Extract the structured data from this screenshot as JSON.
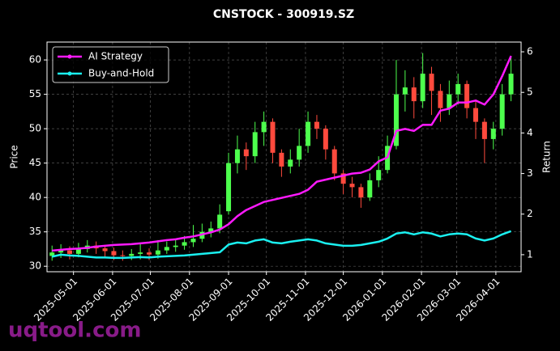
{
  "chart_data": {
    "type": "candlestick",
    "title": "CNSTOCK - 300919.SZ",
    "ylabel": "Price",
    "y2label": "Return",
    "watermark": "uqtool.com",
    "grid": true,
    "legend": "upper left",
    "up_color": "#4dff4d",
    "down_color": "#ff4a3d",
    "x": [
      "2025-04-14",
      "2025-04-21",
      "2025-04-28",
      "2025-05-05",
      "2025-05-12",
      "2025-05-19",
      "2025-05-26",
      "2025-06-02",
      "2025-06-09",
      "2025-06-16",
      "2025-06-23",
      "2025-06-30",
      "2025-07-07",
      "2025-07-14",
      "2025-07-21",
      "2025-07-28",
      "2025-08-04",
      "2025-08-11",
      "2025-08-18",
      "2025-08-25",
      "2025-09-01",
      "2025-09-08",
      "2025-09-15",
      "2025-09-22",
      "2025-09-29",
      "2025-10-06",
      "2025-10-13",
      "2025-10-20",
      "2025-10-27",
      "2025-11-03",
      "2025-11-10",
      "2025-11-17",
      "2025-11-24",
      "2025-12-01",
      "2025-12-08",
      "2025-12-15",
      "2025-12-22",
      "2025-12-29",
      "2026-01-05",
      "2026-01-12",
      "2026-01-19",
      "2026-01-26",
      "2026-02-02",
      "2026-02-09",
      "2026-02-16",
      "2026-02-23",
      "2026-03-02",
      "2026-03-09",
      "2026-03-16",
      "2026-03-23",
      "2026-03-30",
      "2026-04-06",
      "2026-04-13"
    ],
    "open": [
      31.5,
      32.0,
      32.3,
      31.8,
      32.5,
      33.0,
      32.6,
      32.2,
      31.6,
      31.5,
      31.8,
      32.0,
      31.7,
      32.3,
      32.8,
      33.0,
      33.5,
      34.0,
      35.0,
      35.5,
      38.0,
      45.0,
      47.0,
      46.0,
      49.5,
      51.0,
      46.5,
      44.5,
      45.5,
      47.5,
      51.0,
      50.0,
      47.0,
      43.5,
      42.0,
      41.5,
      40.0,
      42.5,
      44.0,
      47.5,
      55.0,
      56.0,
      54.0,
      58.0,
      55.5,
      53.0,
      55.0,
      56.5,
      53.0,
      51.0,
      48.5,
      50.0,
      55.0
    ],
    "high": [
      33.0,
      33.2,
      32.9,
      33.4,
      33.8,
      33.6,
      33.1,
      32.7,
      32.3,
      32.5,
      33.4,
      32.6,
      33.8,
      33.6,
      34.0,
      34.4,
      36.0,
      36.2,
      36.5,
      39.0,
      46.5,
      49.0,
      48.0,
      51.0,
      52.5,
      51.5,
      47.0,
      47.0,
      50.0,
      52.5,
      52.0,
      50.5,
      47.5,
      44.0,
      43.0,
      42.0,
      43.5,
      46.0,
      49.0,
      60.0,
      58.5,
      57.5,
      61.0,
      59.0,
      56.5,
      57.0,
      58.0,
      57.0,
      54.0,
      51.5,
      51.0,
      56.5,
      60.5
    ],
    "low": [
      30.8,
      31.2,
      31.0,
      31.3,
      32.0,
      31.8,
      31.4,
      30.9,
      30.8,
      30.9,
      31.0,
      30.9,
      31.1,
      31.8,
      32.1,
      32.4,
      32.8,
      33.5,
      34.2,
      34.8,
      37.5,
      43.5,
      44.0,
      45.0,
      47.5,
      45.0,
      43.0,
      43.5,
      44.5,
      46.5,
      48.5,
      45.5,
      42.5,
      40.5,
      40.0,
      38.5,
      39.5,
      41.5,
      43.5,
      47.0,
      52.5,
      51.5,
      53.0,
      52.0,
      51.0,
      52.0,
      53.5,
      51.5,
      48.5,
      45.0,
      47.0,
      49.0,
      54.0
    ],
    "close": [
      32.0,
      32.3,
      31.8,
      32.5,
      33.0,
      32.6,
      32.2,
      31.6,
      31.5,
      31.8,
      32.0,
      31.7,
      32.3,
      32.8,
      33.0,
      33.5,
      34.0,
      35.0,
      35.5,
      37.5,
      45.0,
      47.0,
      46.0,
      49.5,
      51.0,
      46.5,
      44.5,
      45.5,
      47.5,
      51.0,
      50.0,
      47.0,
      43.5,
      42.0,
      41.5,
      40.0,
      42.5,
      44.0,
      47.5,
      55.0,
      56.0,
      54.0,
      58.0,
      55.5,
      53.0,
      55.0,
      56.5,
      53.0,
      51.0,
      48.5,
      50.0,
      55.0,
      58.0
    ],
    "series": [
      {
        "name": "AI Strategy",
        "color": "#ff1aff",
        "axis": "y2",
        "values": [
          1.1,
          1.12,
          1.14,
          1.15,
          1.17,
          1.2,
          1.22,
          1.24,
          1.25,
          1.26,
          1.28,
          1.3,
          1.33,
          1.36,
          1.38,
          1.42,
          1.45,
          1.5,
          1.55,
          1.62,
          1.75,
          1.95,
          2.1,
          2.2,
          2.3,
          2.35,
          2.4,
          2.45,
          2.5,
          2.6,
          2.8,
          2.85,
          2.9,
          2.95,
          3.0,
          3.02,
          3.1,
          3.3,
          3.4,
          4.05,
          4.1,
          4.05,
          4.2,
          4.2,
          4.55,
          4.6,
          4.75,
          4.75,
          4.8,
          4.7,
          4.95,
          5.4,
          5.9
        ]
      },
      {
        "name": "Buy-and-Hold",
        "color": "#1af0f0",
        "axis": "y2",
        "values": [
          0.95,
          1.0,
          0.98,
          0.97,
          0.95,
          0.93,
          0.93,
          0.92,
          0.92,
          0.93,
          0.94,
          0.93,
          0.95,
          0.96,
          0.97,
          0.98,
          1.0,
          1.02,
          1.04,
          1.06,
          1.25,
          1.3,
          1.28,
          1.35,
          1.38,
          1.3,
          1.28,
          1.32,
          1.35,
          1.38,
          1.35,
          1.28,
          1.25,
          1.22,
          1.22,
          1.24,
          1.28,
          1.32,
          1.4,
          1.52,
          1.55,
          1.5,
          1.55,
          1.52,
          1.45,
          1.5,
          1.52,
          1.5,
          1.4,
          1.35,
          1.4,
          1.5,
          1.58
        ]
      }
    ],
    "xlim": [
      "2025-04-10",
      "2026-04-21"
    ],
    "xticks": [
      "2025-05-01",
      "2025-06-01",
      "2025-07-01",
      "2025-08-01",
      "2025-09-01",
      "2025-10-01",
      "2025-11-01",
      "2025-12-01",
      "2026-01-01",
      "2026-02-01",
      "2026-03-01",
      "2026-04-01"
    ],
    "ylim": [
      29.2,
      62.6
    ],
    "yticks": [
      30,
      35,
      40,
      45,
      50,
      55,
      60
    ],
    "y2lim": [
      0.58,
      6.24
    ],
    "y2ticks": [
      1,
      2,
      3,
      4,
      5,
      6
    ]
  }
}
